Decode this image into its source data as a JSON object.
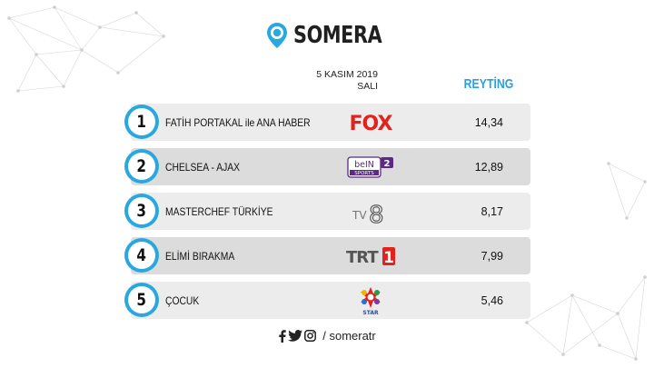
{
  "brand": {
    "name": "SOMERA",
    "color": "#29a8e0"
  },
  "date": {
    "line1": "5 KASIM 2019",
    "line2": "SALI"
  },
  "rating_header": "REYTİNG",
  "rows": [
    {
      "rank": "1",
      "program": "FATİH PORTAKAL ile ANA HABER",
      "channel": "FOX",
      "channel_icon": "fox-logo",
      "rating": "14,34"
    },
    {
      "rank": "2",
      "program": "CHELSEA - AJAX",
      "channel": "beIN SPORTS 2",
      "channel_icon": "bein-sports-2-logo",
      "rating": "12,89"
    },
    {
      "rank": "3",
      "program": "MASTERCHEF TÜRKİYE",
      "channel": "TV8",
      "channel_icon": "tv8-logo",
      "rating": "8,17"
    },
    {
      "rank": "4",
      "program": "ELİMİ BIRAKMA",
      "channel": "TRT 1",
      "channel_icon": "trt1-logo",
      "rating": "7,99"
    },
    {
      "rank": "5",
      "program": "ÇOCUK",
      "channel": "STAR",
      "channel_icon": "star-tv-logo",
      "rating": "5,46"
    }
  ],
  "footer": {
    "icons": [
      "facebook-icon",
      "twitter-icon",
      "instagram-icon"
    ],
    "handle": "/ someratr"
  },
  "colors": {
    "accent": "#29a8e0",
    "header_text": "#2aa0df",
    "row_light": "#ececec",
    "row_dark": "#dcdcdc",
    "fox_red": "#e3231b",
    "bein_purple": "#5b2a86",
    "trt_red": "#e3231b"
  }
}
